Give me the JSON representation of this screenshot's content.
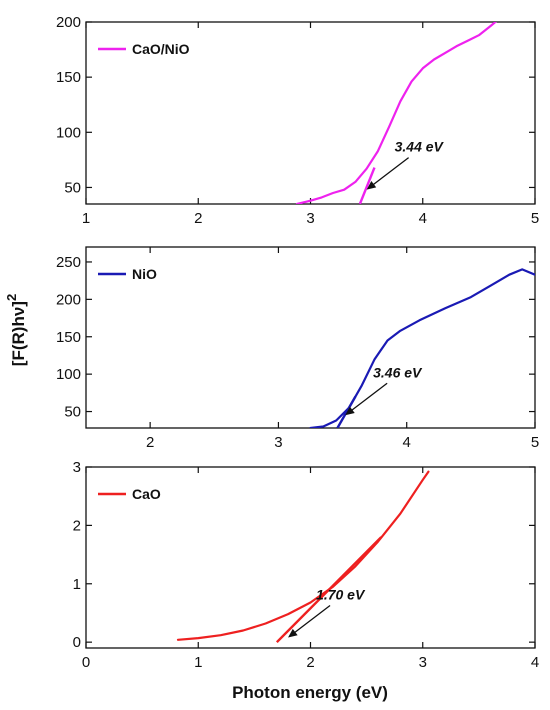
{
  "chart_data": [
    {
      "type": "line",
      "panel": "top",
      "xlim": [
        1,
        5
      ],
      "ylim": [
        35,
        200
      ],
      "x_ticks": [
        "1",
        "2",
        "3",
        "4",
        "5"
      ],
      "y_ticks": [
        "50",
        "100",
        "150",
        "200"
      ],
      "legend": "CaO/NiO",
      "color": "#ee22ee",
      "series": [
        {
          "name": "CaO/NiO",
          "x": [
            2.88,
            3.0,
            3.1,
            3.2,
            3.3,
            3.4,
            3.5,
            3.6,
            3.7,
            3.8,
            3.9,
            4.0,
            4.1,
            4.2,
            4.3,
            4.4,
            4.5,
            4.6,
            4.67
          ],
          "y": [
            35,
            38,
            41,
            45,
            48,
            55,
            67,
            83,
            105,
            128,
            146,
            158,
            166,
            172,
            178,
            183,
            188,
            196,
            202
          ]
        }
      ],
      "tangent": {
        "x": [
          3.44,
          3.57
        ],
        "y": [
          35,
          68
        ]
      },
      "annotation": {
        "text": "3.44 eV",
        "arrow_to": [
          3.5,
          48
        ]
      },
      "grid": false,
      "legend_position": "top-left"
    },
    {
      "type": "line",
      "panel": "middle",
      "xlim": [
        1.5,
        5
      ],
      "ylim": [
        28,
        270
      ],
      "x_ticks": [
        "2",
        "3",
        "4",
        "5"
      ],
      "y_ticks": [
        "50",
        "100",
        "150",
        "200",
        "250"
      ],
      "legend": "NiO",
      "color": "#1a1ab4",
      "series": [
        {
          "name": "NiO",
          "x": [
            3.25,
            3.35,
            3.45,
            3.55,
            3.65,
            3.75,
            3.85,
            3.95,
            4.1,
            4.3,
            4.5,
            4.65,
            4.8,
            4.9,
            5.0
          ],
          "y": [
            28,
            30,
            38,
            55,
            85,
            120,
            145,
            158,
            172,
            188,
            203,
            218,
            233,
            240,
            233
          ]
        }
      ],
      "tangent": {
        "x": [
          3.46,
          3.6
        ],
        "y": [
          28,
          70
        ]
      },
      "annotation": {
        "text": "3.46 eV",
        "arrow_to": [
          3.52,
          45
        ]
      },
      "grid": false,
      "legend_position": "top-left"
    },
    {
      "type": "line",
      "panel": "bottom",
      "xlim": [
        0,
        4
      ],
      "ylim": [
        -0.1,
        3
      ],
      "x_ticks": [
        "0",
        "1",
        "2",
        "3",
        "4"
      ],
      "y_ticks": [
        "0",
        "1",
        "2",
        "3"
      ],
      "xlabel": "Photon energy (eV)",
      "legend": "CaO",
      "color": "#ee2020",
      "series": [
        {
          "name": "CaO",
          "x": [
            0.82,
            1.0,
            1.2,
            1.4,
            1.6,
            1.8,
            2.0,
            2.2,
            2.4,
            2.6,
            2.8,
            3.0,
            3.05
          ],
          "y": [
            0.04,
            0.07,
            0.12,
            0.2,
            0.32,
            0.48,
            0.68,
            0.95,
            1.3,
            1.72,
            2.2,
            2.78,
            2.92
          ]
        }
      ],
      "tangent": {
        "x": [
          1.7,
          2.63
        ],
        "y": [
          0,
          1.8
        ]
      },
      "annotation": {
        "text": "1.70 eV",
        "arrow_to": [
          1.8,
          0.08
        ]
      },
      "grid": false,
      "legend_position": "top-left"
    }
  ],
  "shared_ylabel_text": "[F(R)hν]",
  "shared_ylabel_sup": "2"
}
